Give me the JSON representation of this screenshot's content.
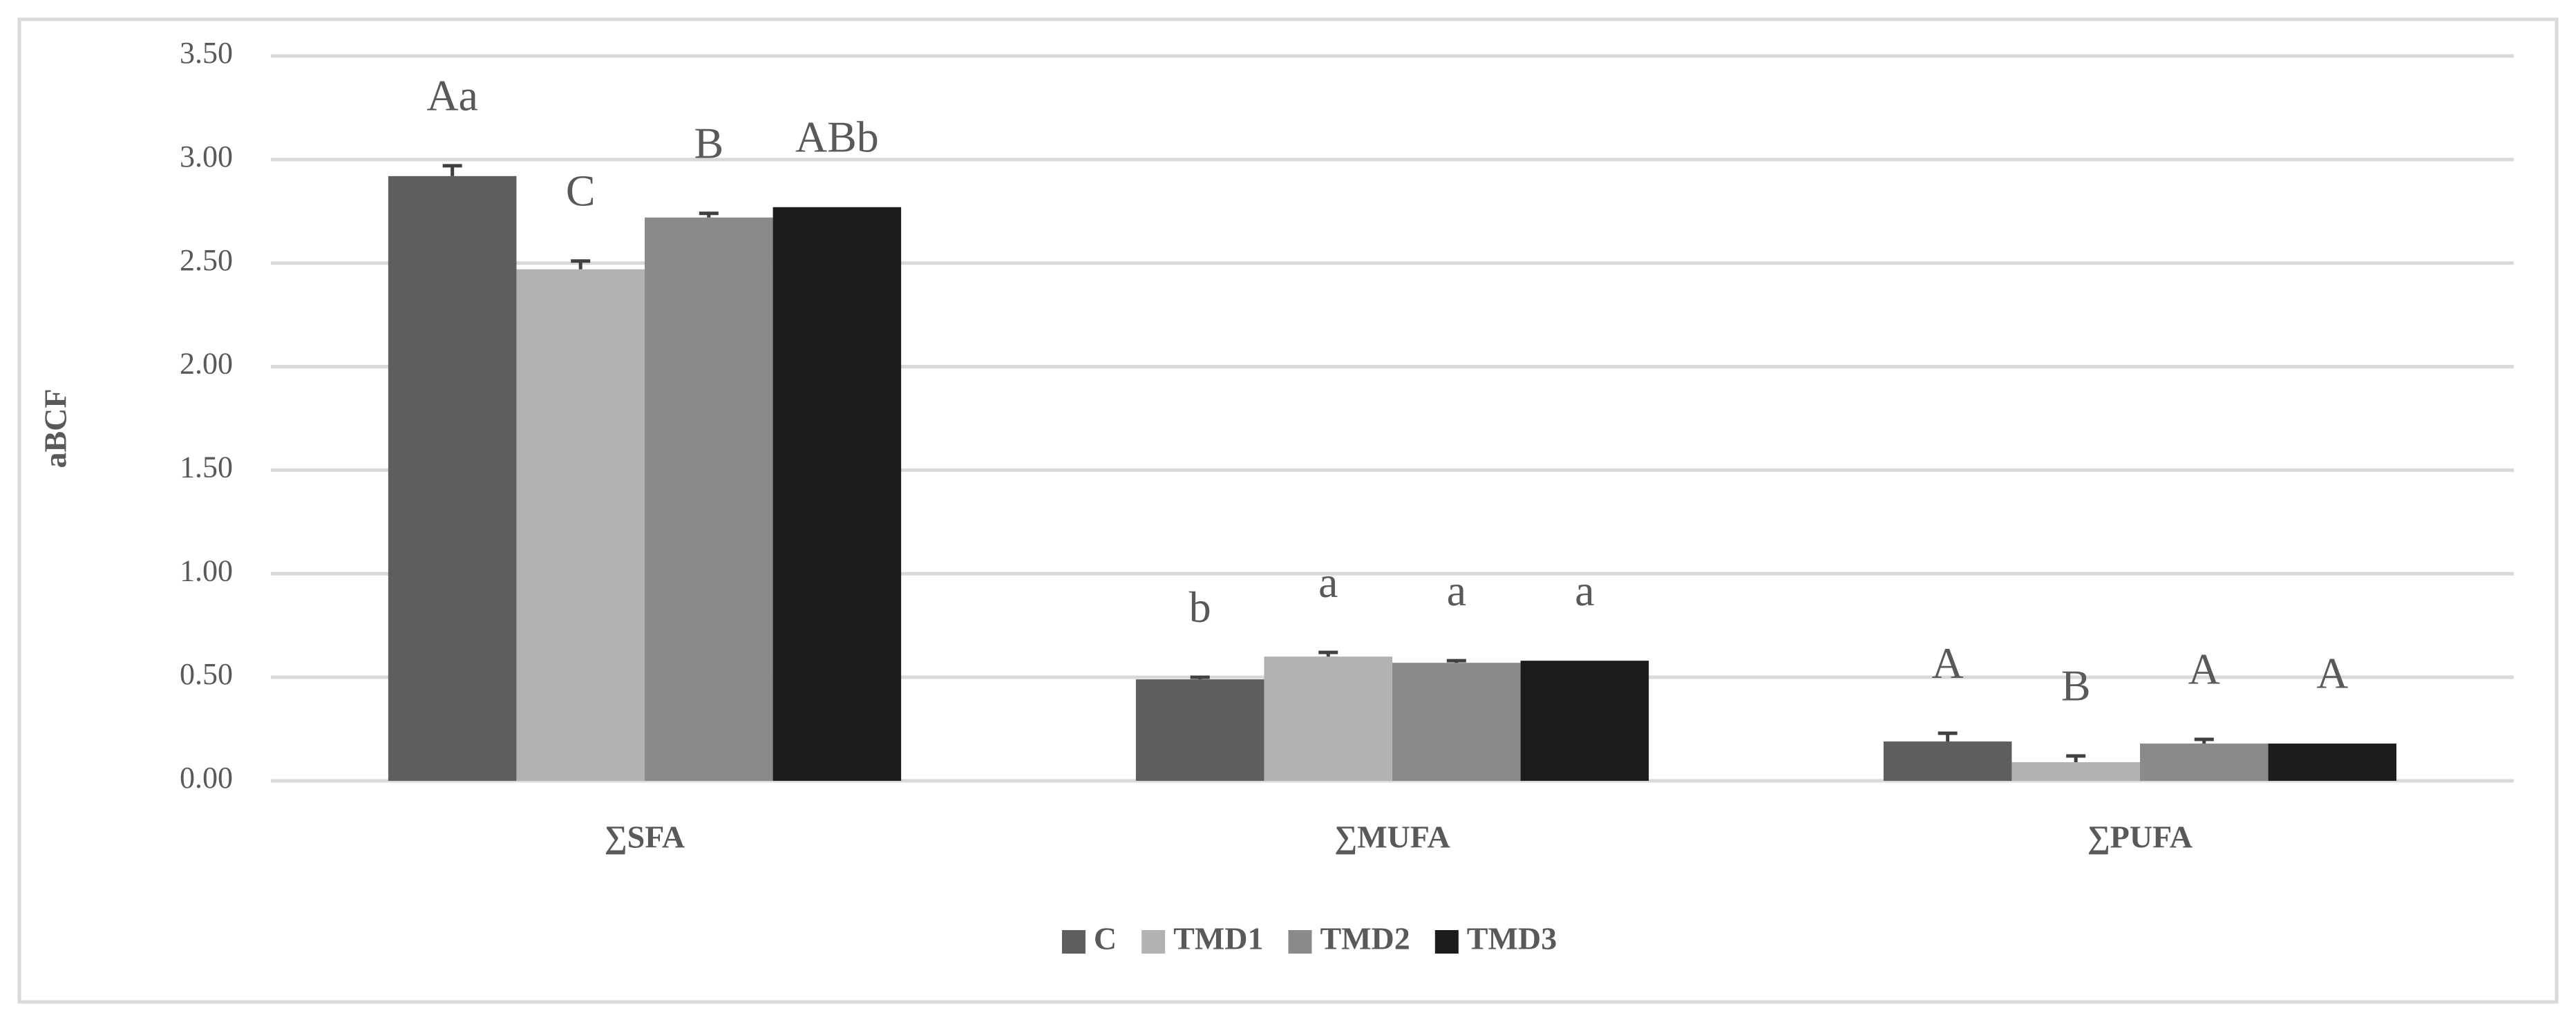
{
  "chart_data": {
    "type": "bar",
    "y_label": "aBCF",
    "categories": [
      "∑SFA",
      "∑MUFA",
      "∑PUFA"
    ],
    "series": [
      {
        "name": "C",
        "color": "#5e5e5e",
        "values": [
          2.92,
          0.49,
          0.19
        ],
        "errors": [
          0.05,
          0.01,
          0.04
        ],
        "letters": [
          "Aa",
          "b",
          "A"
        ]
      },
      {
        "name": "TMD1",
        "color": "#b2b2b2",
        "values": [
          2.47,
          0.6,
          0.09
        ],
        "errors": [
          0.04,
          0.02,
          0.03
        ],
        "letters": [
          "C",
          "a",
          "B"
        ]
      },
      {
        "name": "TMD2",
        "color": "#8a8a8a",
        "values": [
          2.72,
          0.57,
          0.18
        ],
        "errors": [
          0.02,
          0.01,
          0.02
        ],
        "letters": [
          "B",
          "a",
          "A"
        ]
      },
      {
        "name": "TMD3",
        "color": "#1c1c1c",
        "values": [
          2.77,
          0.58,
          0.18
        ],
        "letters": [
          "ABb",
          "a",
          "A"
        ]
      }
    ],
    "ylim": [
      0,
      3.5
    ],
    "yticks": [
      {
        "value": 0,
        "label": "0.00"
      },
      {
        "value": 0.5,
        "label": "0.50"
      },
      {
        "value": 1,
        "label": "1.00"
      },
      {
        "value": 1.5,
        "label": "1.50"
      },
      {
        "value": 2,
        "label": "2.00"
      },
      {
        "value": 2.5,
        "label": "2.50"
      },
      {
        "value": 3,
        "label": "3.00"
      },
      {
        "value": 3.5,
        "label": "3.50"
      }
    ],
    "grid": true
  }
}
